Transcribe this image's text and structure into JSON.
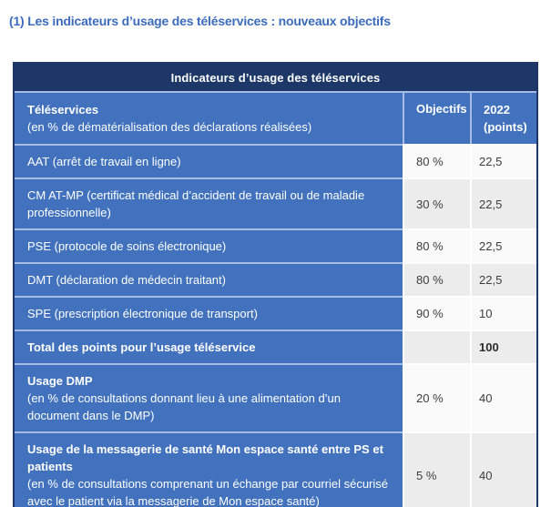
{
  "page_title": "(1) Les indicateurs d’usage des téléservices : nouveaux objectifs",
  "colors": {
    "navy_header": "#1c3768",
    "row_blue": "#4272bd",
    "title_blue": "#3c6bbd",
    "cell_white": "#fafafa",
    "cell_grey": "#ececec"
  },
  "table": {
    "caption": "Indicateurs d’usage des téléservices",
    "header": {
      "col1_bold": "Téléservices",
      "col1_sub": "(en % de dématérialisation des déclarations réalisées)",
      "col2": "Objectifs",
      "col3_line1": "2022",
      "col3_line2": "(points)"
    },
    "rows": [
      {
        "text": "AAT (arrêt de travail en ligne)",
        "objectif": "80 %",
        "points": "22,5"
      },
      {
        "text": "CM AT-MP (certificat médical d’accident de travail ou de maladie professionnelle)",
        "objectif": "30 %",
        "points": "22,5"
      },
      {
        "text": "PSE (protocole de soins électronique)",
        "objectif": "80 %",
        "points": "22,5"
      },
      {
        "text": "DMT (déclaration de médecin traitant)",
        "objectif": "80 %",
        "points": "22,5"
      },
      {
        "text": "SPE (prescription électronique de transport)",
        "objectif": "90 %",
        "points": "10"
      },
      {
        "bold": "Total des points pour l’usage téléservice",
        "objectif": "",
        "points": "100"
      },
      {
        "bold": "Usage DMP",
        "text": "(en % de consultations donnant lieu à une alimentation d’un document dans le DMP)",
        "objectif": "20 %",
        "points": "40"
      },
      {
        "bold": "Usage de la messagerie de santé Mon espace santé entre PS et patients",
        "text": "(en % de consultations comprenant un échange par courriel sécurisé avec le patient via la messagerie de Mon espace santé)",
        "objectif": "5 %",
        "points": "40"
      }
    ]
  }
}
